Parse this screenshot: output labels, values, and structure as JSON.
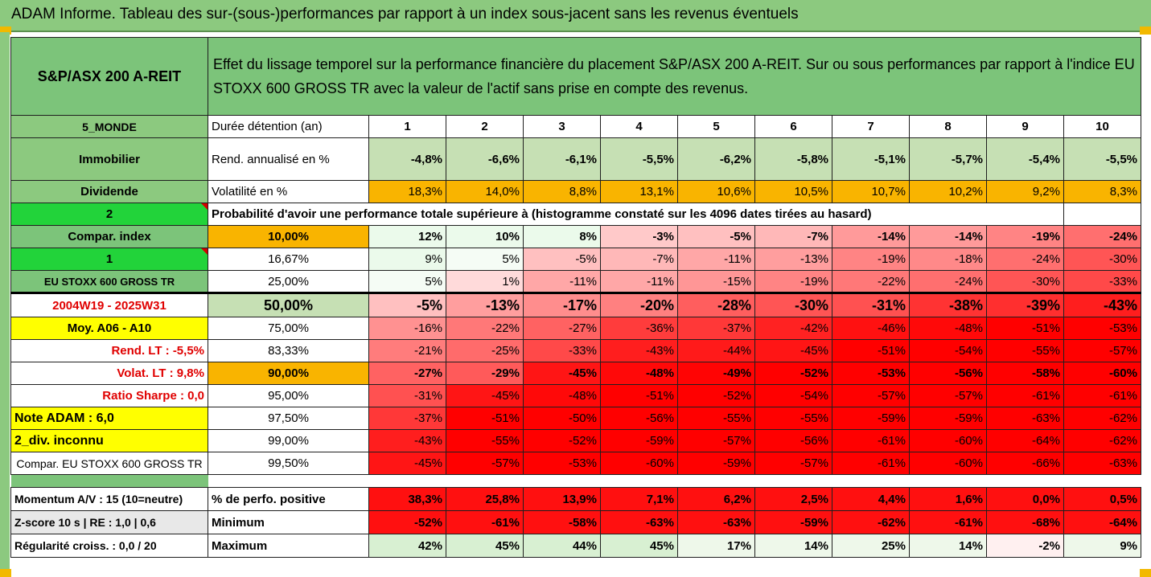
{
  "title": "ADAM Informe. Tableau des sur-(sous-)performances par rapport à un index sous-jacent sans les revenus éventuels",
  "header": {
    "asset": "S&P/ASX 200 A-REIT",
    "description": "Effet du lissage temporel sur la performance financière du placement S&P/ASX 200 A-REIT. Sur ou sous performances par rapport à l'indice EU STOXX 600 GROSS TR avec la valeur de l'actif sans prise en compte des revenus."
  },
  "duration_row": {
    "left": "5_MONDE",
    "label": "Durée détention (an)",
    "years": [
      "1",
      "2",
      "3",
      "4",
      "5",
      "6",
      "7",
      "8",
      "9",
      "10"
    ]
  },
  "rend_row": {
    "left": "Immobilier",
    "label": "Rend. annualisé en %",
    "values": [
      "-4,8%",
      "-6,6%",
      "-6,1%",
      "-5,5%",
      "-6,2%",
      "-5,8%",
      "-5,1%",
      "-5,7%",
      "-5,4%",
      "-5,5%"
    ]
  },
  "vol_row": {
    "left": "Dividende",
    "label": "Volatilité en %",
    "values": [
      "18,3%",
      "14,0%",
      "8,8%",
      "13,1%",
      "10,6%",
      "10,5%",
      "10,7%",
      "10,2%",
      "9,2%",
      "8,3%"
    ]
  },
  "prob_row": {
    "left": "2",
    "label": "Probabilité d'avoir une performance totale supérieure à (histogramme constaté sur les 4096 dates tirées au hasard)"
  },
  "prob_rows": [
    {
      "left": "Compar. index",
      "pct": "10,00%",
      "values": [
        "12%",
        "10%",
        "8%",
        "-3%",
        "-5%",
        "-7%",
        "-14%",
        "-14%",
        "-19%",
        "-24%"
      ]
    },
    {
      "left": "1",
      "pct": "16,67%",
      "values": [
        "9%",
        "5%",
        "-5%",
        "-7%",
        "-11%",
        "-13%",
        "-19%",
        "-18%",
        "-24%",
        "-30%"
      ]
    },
    {
      "left": "EU STOXX 600 GROSS TR",
      "pct": "25,00%",
      "values": [
        "5%",
        "1%",
        "-11%",
        "-11%",
        "-15%",
        "-19%",
        "-22%",
        "-24%",
        "-30%",
        "-33%"
      ]
    },
    {
      "left": "2004W19 - 2025W31",
      "pct": "50,00%",
      "values": [
        "-5%",
        "-13%",
        "-17%",
        "-20%",
        "-28%",
        "-30%",
        "-31%",
        "-38%",
        "-39%",
        "-43%"
      ]
    },
    {
      "left": "Moy. A06 - A10",
      "pct": "75,00%",
      "values": [
        "-16%",
        "-22%",
        "-27%",
        "-36%",
        "-37%",
        "-42%",
        "-46%",
        "-48%",
        "-51%",
        "-53%"
      ]
    },
    {
      "left": "Rend. LT :   -5,5%",
      "pct": "83,33%",
      "values": [
        "-21%",
        "-25%",
        "-33%",
        "-43%",
        "-44%",
        "-45%",
        "-51%",
        "-54%",
        "-55%",
        "-57%"
      ]
    },
    {
      "left": "Volat. LT :   9,8%",
      "pct": "90,00%",
      "values": [
        "-27%",
        "-29%",
        "-45%",
        "-48%",
        "-49%",
        "-52%",
        "-53%",
        "-56%",
        "-58%",
        "-60%"
      ]
    },
    {
      "left": "Ratio Sharpe :   0,0",
      "pct": "95,00%",
      "values": [
        "-31%",
        "-45%",
        "-48%",
        "-51%",
        "-52%",
        "-54%",
        "-57%",
        "-57%",
        "-61%",
        "-61%"
      ]
    },
    {
      "left": "Note ADAM : 6,0",
      "pct": "97,50%",
      "values": [
        "-37%",
        "-51%",
        "-50%",
        "-56%",
        "-55%",
        "-55%",
        "-59%",
        "-59%",
        "-63%",
        "-62%"
      ]
    },
    {
      "left": "2_div. inconnu",
      "pct": "99,00%",
      "values": [
        "-43%",
        "-55%",
        "-52%",
        "-59%",
        "-57%",
        "-56%",
        "-61%",
        "-60%",
        "-64%",
        "-62%"
      ]
    },
    {
      "left": "Compar. EU STOXX 600 GROSS TR",
      "pct": "99,50%",
      "values": [
        "-45%",
        "-57%",
        "-53%",
        "-60%",
        "-59%",
        "-57%",
        "-61%",
        "-60%",
        "-66%",
        "-63%"
      ]
    }
  ],
  "bottom_rows": [
    {
      "left": "Momentum A/V : 15 (10=neutre)",
      "label": "% de perfo. positive",
      "values": [
        "38,3%",
        "25,8%",
        "13,9%",
        "7,1%",
        "6,2%",
        "2,5%",
        "4,4%",
        "1,6%",
        "0,0%",
        "0,5%"
      ]
    },
    {
      "left": "Z-score 10 s  |  RE : 1,0  |  0,6",
      "label": "Minimum",
      "values": [
        "-52%",
        "-61%",
        "-58%",
        "-63%",
        "-63%",
        "-59%",
        "-62%",
        "-61%",
        "-68%",
        "-64%"
      ]
    },
    {
      "left": "Régularité croiss. : 0,0 / 20",
      "label": "Maximum",
      "values": [
        "42%",
        "45%",
        "44%",
        "45%",
        "17%",
        "14%",
        "25%",
        "14%",
        "-2%",
        "9%"
      ]
    }
  ],
  "colors": {
    "header_green": "#7cc47a",
    "bright_green": "#22d33a",
    "yellow": "#ffff00",
    "orange": "#f9b400",
    "red": "#ff0000"
  }
}
